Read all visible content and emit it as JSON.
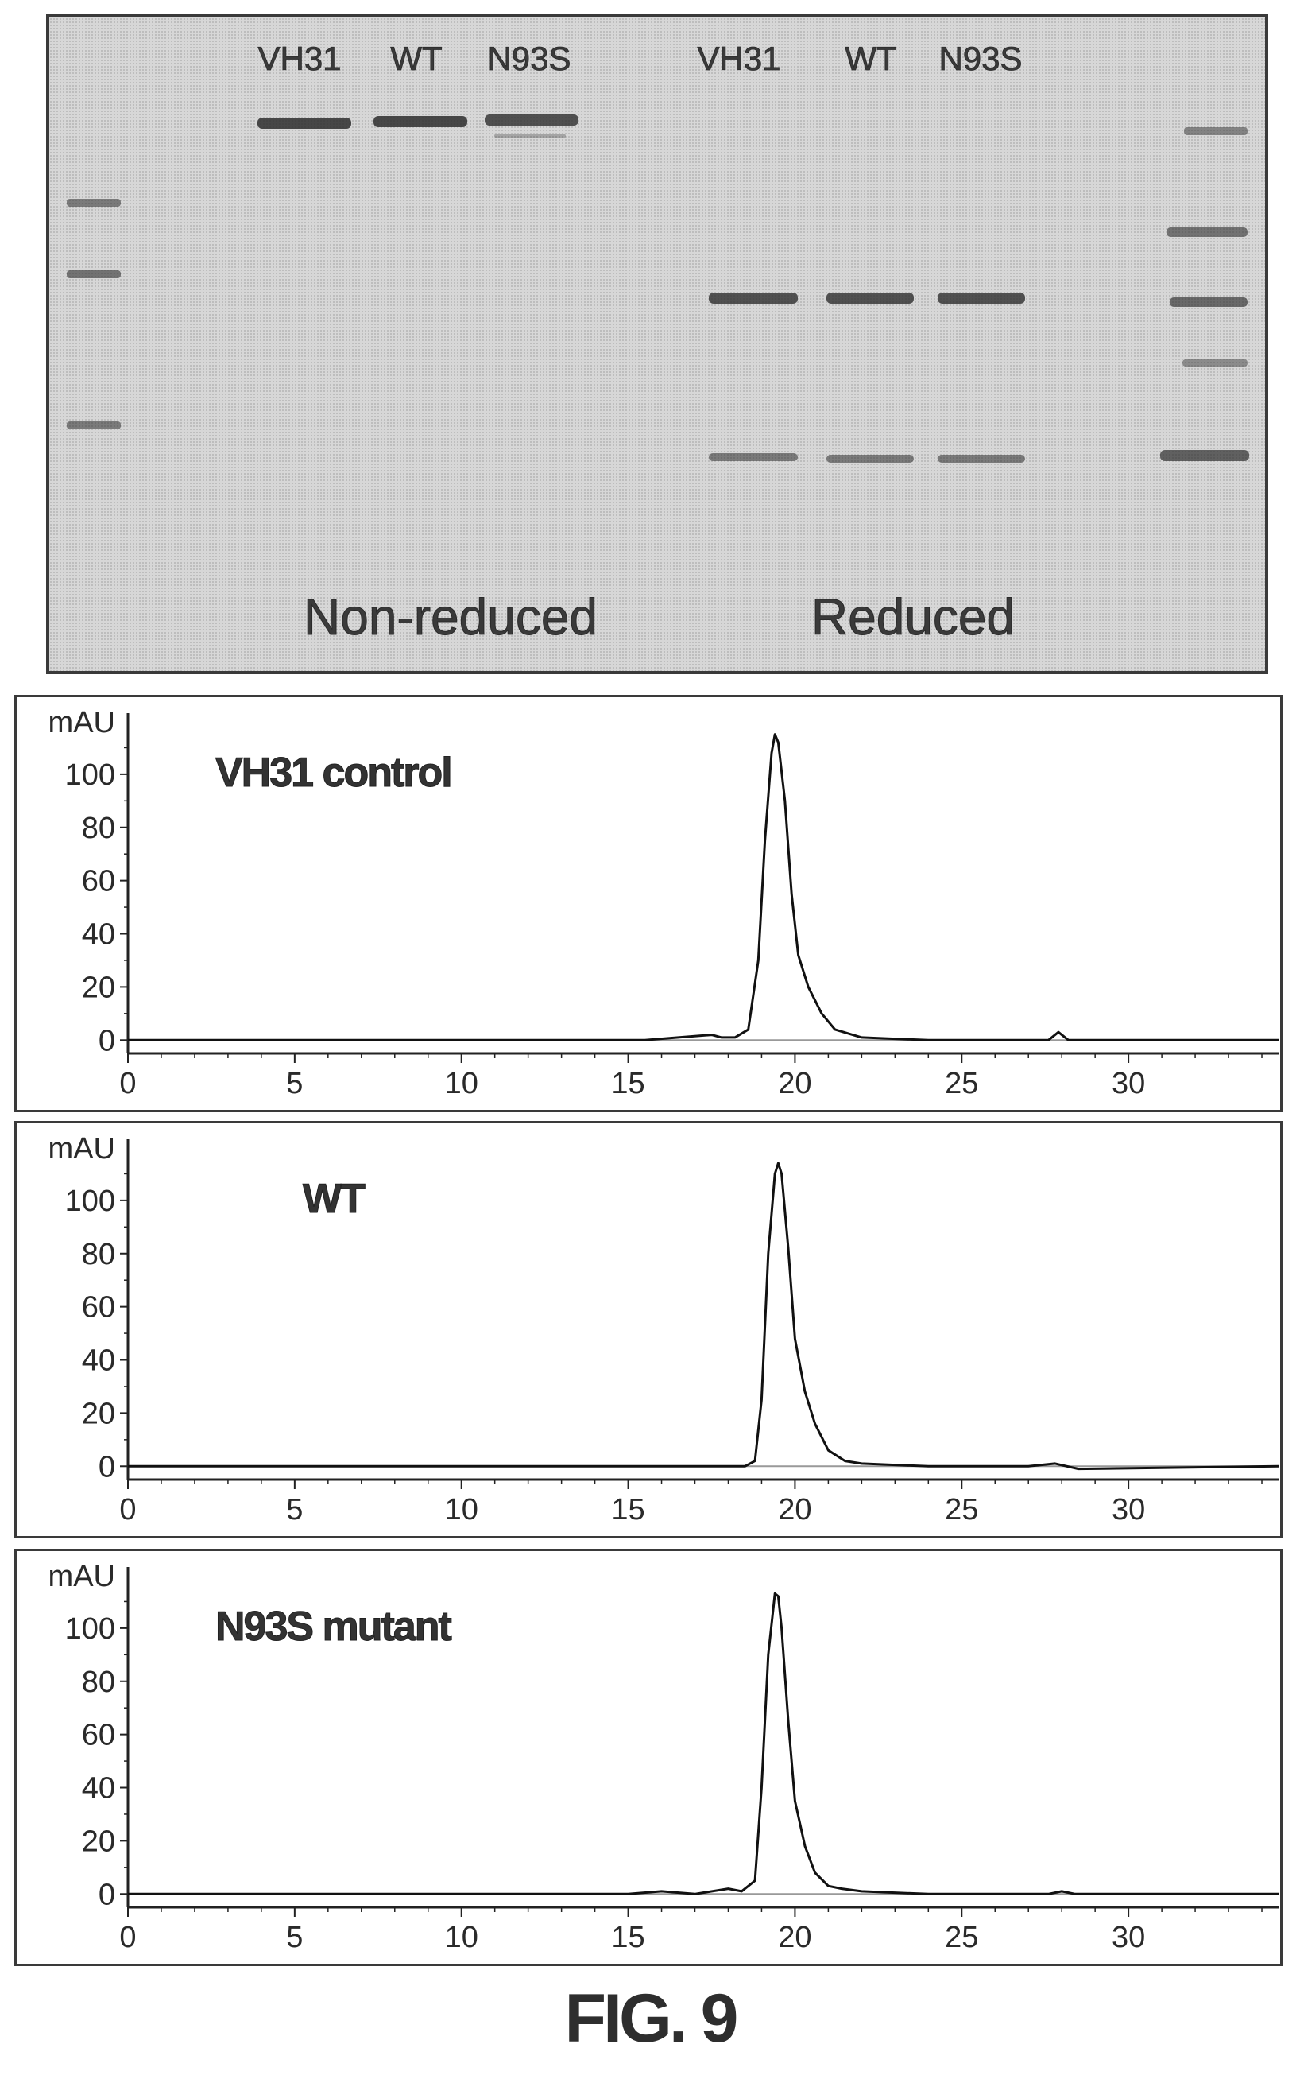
{
  "gel": {
    "lanes": [
      {
        "label": "VH31",
        "group": "non-reduced"
      },
      {
        "label": "WT",
        "group": "non-reduced"
      },
      {
        "label": "N93S",
        "group": "non-reduced"
      },
      {
        "label": "VH31",
        "group": "reduced"
      },
      {
        "label": "WT",
        "group": "reduced"
      },
      {
        "label": "N93S",
        "group": "reduced"
      }
    ],
    "captions": [
      "Non-reduced",
      "Reduced"
    ]
  },
  "chart_data": [
    {
      "type": "line",
      "title": "VH31 control",
      "ylabel": "mAU",
      "xlim": [
        0,
        34.5
      ],
      "ylim": [
        -5,
        120
      ],
      "xticks": [
        0,
        5,
        10,
        15,
        20,
        25,
        30
      ],
      "yticks": [
        0,
        20,
        40,
        60,
        80,
        100
      ],
      "grid": false,
      "series": [
        {
          "x": [
            0,
            10,
            15.5,
            16.5,
            17.5,
            17.8,
            18.2,
            18.6,
            18.9,
            19.1,
            19.3,
            19.4,
            19.5,
            19.7,
            19.9,
            20.1,
            20.4,
            20.8,
            21.2,
            22,
            24,
            27.6,
            27.9,
            28.2,
            29,
            34.5
          ],
          "y": [
            0,
            0,
            0,
            1,
            2,
            1,
            1,
            4,
            30,
            75,
            108,
            115,
            112,
            90,
            55,
            32,
            20,
            10,
            4,
            1,
            0,
            0,
            3,
            0,
            0,
            0
          ]
        }
      ]
    },
    {
      "type": "line",
      "title": "WT",
      "ylabel": "mAU",
      "xlim": [
        0,
        34.5
      ],
      "ylim": [
        -5,
        120
      ],
      "xticks": [
        0,
        5,
        10,
        15,
        20,
        25,
        30
      ],
      "yticks": [
        0,
        20,
        40,
        60,
        80,
        100
      ],
      "grid": false,
      "series": [
        {
          "x": [
            0,
            10,
            15,
            17,
            18.5,
            18.8,
            19.0,
            19.2,
            19.4,
            19.5,
            19.6,
            19.8,
            20.0,
            20.3,
            20.6,
            21.0,
            21.5,
            22,
            24,
            27,
            27.8,
            28.5,
            34.5
          ],
          "y": [
            0,
            0,
            0,
            0,
            0,
            2,
            25,
            80,
            110,
            114,
            110,
            82,
            48,
            28,
            16,
            6,
            2,
            1,
            0,
            0,
            1,
            -1,
            0
          ]
        }
      ]
    },
    {
      "type": "line",
      "title": "N93S mutant",
      "ylabel": "mAU",
      "xlim": [
        0,
        34.5
      ],
      "ylim": [
        -5,
        120
      ],
      "xticks": [
        0,
        5,
        10,
        15,
        20,
        25,
        30
      ],
      "yticks": [
        0,
        20,
        40,
        60,
        80,
        100
      ],
      "grid": false,
      "series": [
        {
          "x": [
            0,
            10,
            15,
            16,
            17,
            18,
            18.4,
            18.8,
            19.0,
            19.2,
            19.4,
            19.5,
            19.6,
            19.8,
            20.0,
            20.3,
            20.6,
            21.0,
            21.4,
            22,
            24,
            27.6,
            28,
            28.4,
            34.5
          ],
          "y": [
            0,
            0,
            0,
            1,
            0,
            2,
            1,
            5,
            40,
            90,
            113,
            112,
            100,
            65,
            35,
            18,
            8,
            3,
            2,
            1,
            0,
            0,
            1,
            0,
            0
          ]
        }
      ]
    }
  ],
  "figure_label": "FIG. 9"
}
